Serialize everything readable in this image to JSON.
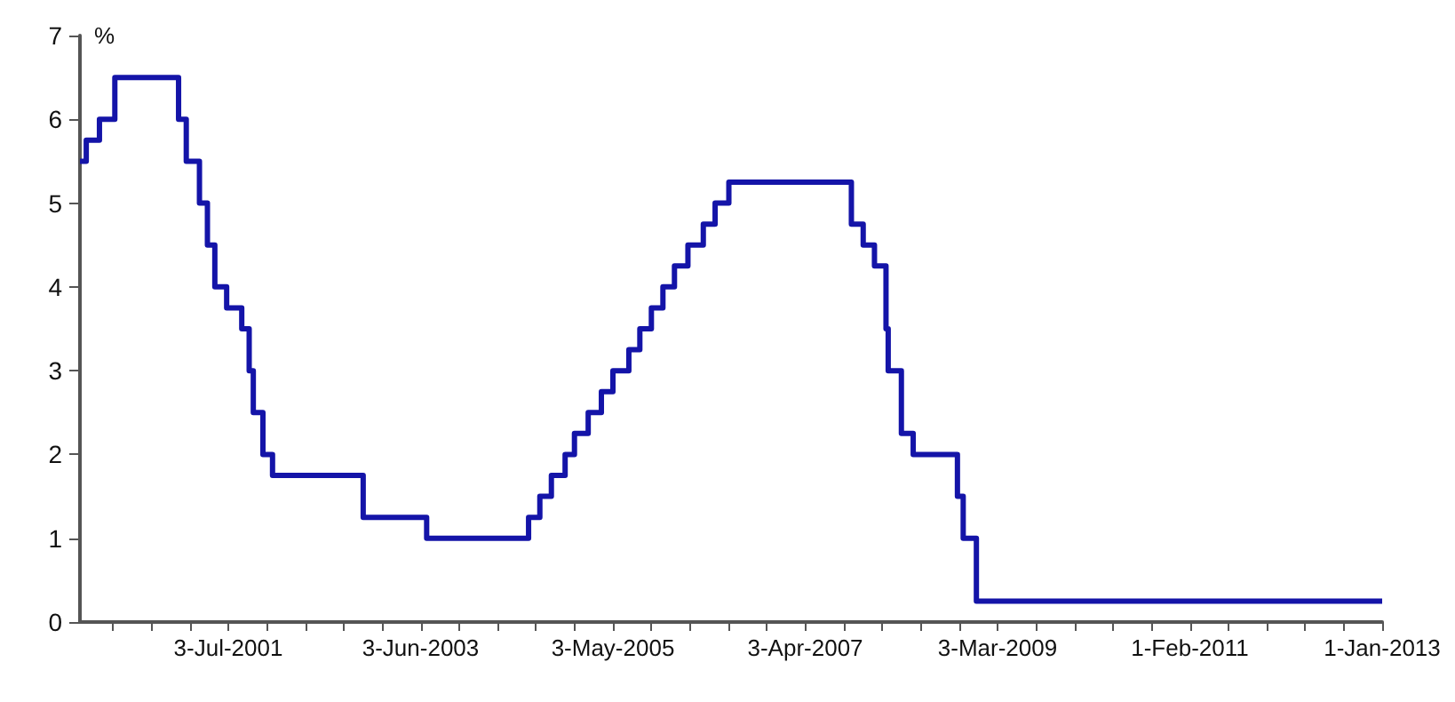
{
  "chart_data": {
    "type": "step",
    "ylabel": "%",
    "color": "#1414a8",
    "line_style": "solid",
    "x": [
      "2000-01-10",
      "2000-02-02",
      "2000-03-21",
      "2000-05-16",
      "2001-01-03",
      "2001-01-31",
      "2001-03-20",
      "2001-04-18",
      "2001-05-15",
      "2001-06-27",
      "2001-08-21",
      "2001-09-17",
      "2001-10-02",
      "2001-11-06",
      "2001-12-11",
      "2002-11-06",
      "2003-06-25",
      "2004-06-30",
      "2004-08-10",
      "2004-09-21",
      "2004-11-10",
      "2004-12-14",
      "2005-02-02",
      "2005-03-22",
      "2005-05-03",
      "2005-06-30",
      "2005-08-09",
      "2005-09-20",
      "2005-11-01",
      "2005-12-13",
      "2006-01-31",
      "2006-03-28",
      "2006-05-10",
      "2006-06-29",
      "2007-09-18",
      "2007-10-31",
      "2007-12-11",
      "2008-01-22",
      "2008-01-30",
      "2008-03-18",
      "2008-04-30",
      "2008-10-08",
      "2008-10-29",
      "2008-12-16",
      "2013-01-01"
    ],
    "values": [
      5.5,
      5.75,
      6.0,
      6.5,
      6.0,
      5.5,
      5.0,
      4.5,
      4.0,
      3.75,
      3.5,
      3.0,
      2.5,
      2.0,
      1.75,
      1.25,
      1.0,
      1.25,
      1.5,
      1.75,
      2.0,
      2.25,
      2.5,
      2.75,
      3.0,
      3.25,
      3.5,
      3.75,
      4.0,
      4.25,
      4.5,
      4.75,
      5.0,
      5.25,
      4.75,
      4.5,
      4.25,
      3.5,
      3.0,
      2.25,
      2.0,
      1.5,
      1.0,
      0.25,
      0.25
    ],
    "xlim": [
      "2000-01-10",
      "2013-01-01"
    ],
    "xticks": [
      {
        "value": "2000-05-09",
        "label": null
      },
      {
        "value": "2000-09-26",
        "label": null
      },
      {
        "value": "2001-02-13",
        "label": null
      },
      {
        "value": "2001-07-03",
        "label": "3-Jul-2001"
      },
      {
        "value": "2001-11-20",
        "label": null
      },
      {
        "value": "2002-04-09",
        "label": null
      },
      {
        "value": "2002-08-27",
        "label": null
      },
      {
        "value": "2003-01-14",
        "label": null
      },
      {
        "value": "2003-06-03",
        "label": "3-Jun-2003"
      },
      {
        "value": "2003-10-21",
        "label": null
      },
      {
        "value": "2004-03-09",
        "label": null
      },
      {
        "value": "2004-07-27",
        "label": null
      },
      {
        "value": "2004-12-14",
        "label": null
      },
      {
        "value": "2005-05-03",
        "label": "3-May-2005"
      },
      {
        "value": "2005-09-20",
        "label": null
      },
      {
        "value": "2006-02-07",
        "label": null
      },
      {
        "value": "2006-06-27",
        "label": null
      },
      {
        "value": "2006-11-14",
        "label": null
      },
      {
        "value": "2007-04-03",
        "label": "3-Apr-2007"
      },
      {
        "value": "2007-08-21",
        "label": null
      },
      {
        "value": "2008-01-08",
        "label": null
      },
      {
        "value": "2008-05-27",
        "label": null
      },
      {
        "value": "2008-10-14",
        "label": null
      },
      {
        "value": "2009-03-03",
        "label": "3-Mar-2009"
      },
      {
        "value": "2009-07-21",
        "label": null
      },
      {
        "value": "2009-12-08",
        "label": null
      },
      {
        "value": "2010-04-27",
        "label": null
      },
      {
        "value": "2010-09-14",
        "label": null
      },
      {
        "value": "2011-02-01",
        "label": "1-Feb-2011"
      },
      {
        "value": "2011-06-21",
        "label": null
      },
      {
        "value": "2011-11-08",
        "label": null
      },
      {
        "value": "2012-03-27",
        "label": null
      },
      {
        "value": "2012-08-14",
        "label": null
      },
      {
        "value": "2013-01-01",
        "label": "1-Jan-2013"
      }
    ],
    "ylim": [
      0,
      7
    ],
    "yticks": [
      0,
      1,
      2,
      3,
      4,
      5,
      6,
      7
    ]
  }
}
